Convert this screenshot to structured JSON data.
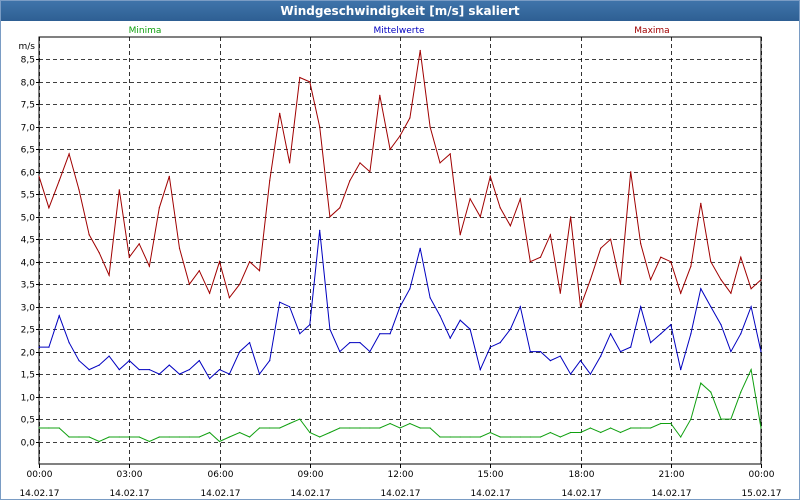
{
  "window": {
    "title": "Windgeschwindigkeit [m/s] skaliert"
  },
  "colors": {
    "minima": "#10a010",
    "mittelwerte": "#0000c0",
    "maxima": "#a00000"
  },
  "chart_data": {
    "type": "line",
    "title": "Windgeschwindigkeit [m/s] skaliert",
    "ylabel": "m/s",
    "ylim": [
      -0.5,
      9.0
    ],
    "xlim": [
      0,
      24
    ],
    "y_ticks": [
      "0,0",
      "0,5",
      "1,0",
      "1,5",
      "2,0",
      "2,5",
      "3,0",
      "3,5",
      "4,0",
      "4,5",
      "5,0",
      "5,5",
      "6,0",
      "6,5",
      "7,0",
      "7,5",
      "8,0",
      "8,5"
    ],
    "x_ticks": [
      {
        "time": "00:00",
        "date": "14.02.17"
      },
      {
        "time": "03:00",
        "date": "14.02.17"
      },
      {
        "time": "06:00",
        "date": "14.02.17"
      },
      {
        "time": "09:00",
        "date": "14.02.17"
      },
      {
        "time": "12:00",
        "date": "14.02.17"
      },
      {
        "time": "15:00",
        "date": "14.02.17"
      },
      {
        "time": "18:00",
        "date": "14.02.17"
      },
      {
        "time": "21:00",
        "date": "14.02.17"
      },
      {
        "time": "00:00",
        "date": "15.02.17"
      }
    ],
    "series": [
      {
        "name": "Minima",
        "key": "minima",
        "x": [
          0,
          0.33,
          0.67,
          1.0,
          1.33,
          1.67,
          2.0,
          2.33,
          2.67,
          3.0,
          3.33,
          3.67,
          4.0,
          4.33,
          4.67,
          5.0,
          5.33,
          5.67,
          6.0,
          6.33,
          6.67,
          7.0,
          7.33,
          7.67,
          8.0,
          8.33,
          8.67,
          9.0,
          9.33,
          9.67,
          10.0,
          10.33,
          10.67,
          11.0,
          11.33,
          11.67,
          12.0,
          12.33,
          12.67,
          13.0,
          13.33,
          13.67,
          14.0,
          14.33,
          14.67,
          15.0,
          15.33,
          15.67,
          16.0,
          16.33,
          16.67,
          17.0,
          17.33,
          17.67,
          18.0,
          18.33,
          18.67,
          19.0,
          19.33,
          19.67,
          20.0,
          20.33,
          20.67,
          21.0,
          21.33,
          21.67,
          22.0,
          22.33,
          22.67,
          23.0,
          23.33,
          23.67,
          24.0
        ],
        "values": [
          0.3,
          0.3,
          0.3,
          0.1,
          0.1,
          0.1,
          0.0,
          0.1,
          0.1,
          0.1,
          0.1,
          0.0,
          0.1,
          0.1,
          0.1,
          0.1,
          0.1,
          0.2,
          0.0,
          0.1,
          0.2,
          0.1,
          0.3,
          0.3,
          0.3,
          0.4,
          0.5,
          0.2,
          0.1,
          0.2,
          0.3,
          0.3,
          0.3,
          0.3,
          0.3,
          0.4,
          0.3,
          0.4,
          0.3,
          0.3,
          0.1,
          0.1,
          0.1,
          0.1,
          0.1,
          0.2,
          0.1,
          0.1,
          0.1,
          0.1,
          0.1,
          0.2,
          0.1,
          0.2,
          0.2,
          0.3,
          0.2,
          0.3,
          0.2,
          0.3,
          0.3,
          0.3,
          0.4,
          0.4,
          0.1,
          0.5,
          1.3,
          1.1,
          0.5,
          0.5,
          1.1,
          1.6,
          0.3
        ]
      },
      {
        "name": "Mittelwerte",
        "key": "mittelwerte",
        "x": [
          0,
          0.33,
          0.67,
          1.0,
          1.33,
          1.67,
          2.0,
          2.33,
          2.67,
          3.0,
          3.33,
          3.67,
          4.0,
          4.33,
          4.67,
          5.0,
          5.33,
          5.67,
          6.0,
          6.33,
          6.67,
          7.0,
          7.33,
          7.67,
          8.0,
          8.33,
          8.67,
          9.0,
          9.33,
          9.67,
          10.0,
          10.33,
          10.67,
          11.0,
          11.33,
          11.67,
          12.0,
          12.33,
          12.67,
          13.0,
          13.33,
          13.67,
          14.0,
          14.33,
          14.67,
          15.0,
          15.33,
          15.67,
          16.0,
          16.33,
          16.67,
          17.0,
          17.33,
          17.67,
          18.0,
          18.33,
          18.67,
          19.0,
          19.33,
          19.67,
          20.0,
          20.33,
          20.67,
          21.0,
          21.33,
          21.67,
          22.0,
          22.33,
          22.67,
          23.0,
          23.33,
          23.67,
          24.0
        ],
        "values": [
          2.1,
          2.1,
          2.8,
          2.2,
          1.8,
          1.6,
          1.7,
          1.9,
          1.6,
          1.8,
          1.6,
          1.6,
          1.5,
          1.7,
          1.5,
          1.6,
          1.8,
          1.4,
          1.6,
          1.5,
          2.0,
          2.2,
          1.5,
          1.8,
          3.1,
          3.0,
          2.4,
          2.6,
          4.7,
          2.5,
          2.0,
          2.2,
          2.2,
          2.0,
          2.4,
          2.4,
          3.0,
          3.4,
          4.3,
          3.2,
          2.8,
          2.3,
          2.7,
          2.5,
          1.6,
          2.1,
          2.2,
          2.5,
          3.0,
          2.0,
          2.0,
          1.8,
          1.9,
          1.5,
          1.8,
          1.5,
          1.9,
          2.4,
          2.0,
          2.1,
          3.0,
          2.2,
          2.4,
          2.6,
          1.6,
          2.4,
          3.4,
          3.0,
          2.6,
          2.0,
          2.4,
          3.0,
          2.0
        ]
      },
      {
        "name": "Maxima",
        "key": "maxima",
        "x": [
          0,
          0.33,
          0.67,
          1.0,
          1.33,
          1.67,
          2.0,
          2.33,
          2.67,
          3.0,
          3.33,
          3.67,
          4.0,
          4.33,
          4.67,
          5.0,
          5.33,
          5.67,
          6.0,
          6.33,
          6.67,
          7.0,
          7.33,
          7.67,
          8.0,
          8.33,
          8.67,
          9.0,
          9.33,
          9.67,
          10.0,
          10.33,
          10.67,
          11.0,
          11.33,
          11.67,
          12.0,
          12.33,
          12.67,
          13.0,
          13.33,
          13.67,
          14.0,
          14.33,
          14.67,
          15.0,
          15.33,
          15.67,
          16.0,
          16.33,
          16.67,
          17.0,
          17.33,
          17.67,
          18.0,
          18.33,
          18.67,
          19.0,
          19.33,
          19.67,
          20.0,
          20.33,
          20.67,
          21.0,
          21.33,
          21.67,
          22.0,
          22.33,
          22.67,
          23.0,
          23.33,
          23.67,
          24.0
        ],
        "values": [
          5.9,
          5.2,
          5.8,
          6.4,
          5.6,
          4.6,
          4.2,
          3.7,
          5.6,
          4.1,
          4.4,
          3.9,
          5.2,
          5.9,
          4.3,
          3.5,
          3.8,
          3.3,
          4.0,
          3.2,
          3.5,
          4.0,
          3.8,
          5.8,
          7.3,
          6.2,
          8.1,
          8.0,
          7.0,
          5.0,
          5.2,
          5.8,
          6.2,
          6.0,
          7.7,
          6.5,
          6.8,
          7.2,
          8.7,
          7.0,
          6.2,
          6.4,
          4.6,
          5.4,
          5.0,
          5.9,
          5.2,
          4.8,
          5.4,
          4.0,
          4.1,
          4.6,
          3.3,
          5.0,
          3.0,
          3.6,
          4.3,
          4.5,
          3.5,
          6.0,
          4.4,
          3.6,
          4.1,
          4.0,
          3.3,
          3.9,
          5.3,
          4.0,
          3.6,
          3.3,
          4.1,
          3.4,
          3.6
        ]
      }
    ]
  }
}
